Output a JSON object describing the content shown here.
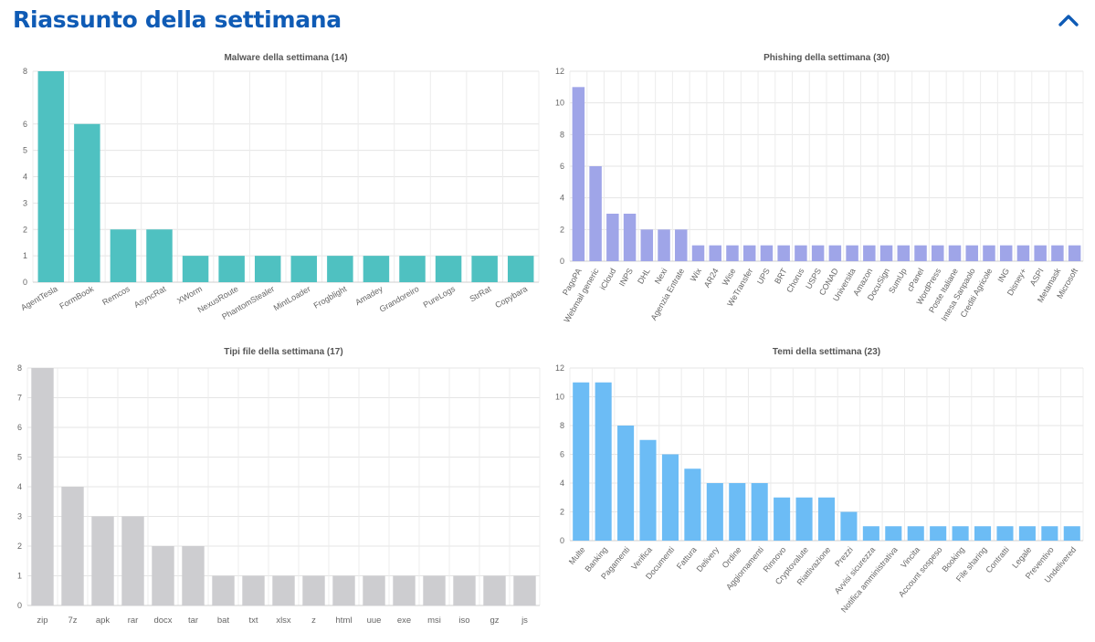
{
  "page": {
    "title": "Riassunto della settimana",
    "collapse_icon": "chevron-up-icon"
  },
  "chart_data": [
    {
      "type": "bar",
      "title": "Malware della settimana (14)",
      "color": "#4fc1c1",
      "ylim": [
        0,
        8
      ],
      "yticks": [
        0,
        1,
        2,
        3,
        4,
        5,
        6,
        8
      ],
      "categories": [
        "AgentTesla",
        "FormBook",
        "Remcos",
        "AsyncRat",
        "XWorm",
        "NexusRoute",
        "PhantomStealer",
        "MintLoader",
        "Frogblight",
        "Amadey",
        "Grandoreiro",
        "PureLogs",
        "StrRat",
        "Copybara"
      ],
      "values": [
        8,
        6,
        2,
        2,
        1,
        1,
        1,
        1,
        1,
        1,
        1,
        1,
        1,
        1
      ],
      "label_rotation": -30,
      "grid": true
    },
    {
      "type": "bar",
      "title": "Phishing della settimana (30)",
      "color": "#9fa5e8",
      "ylim": [
        0,
        12
      ],
      "yticks": [
        0,
        2,
        4,
        6,
        8,
        10,
        12
      ],
      "categories": [
        "PagoPA",
        "Webmail generic",
        "iCloud",
        "INPS",
        "DHL",
        "Nexi",
        "Agenzia Entrate",
        "Wix",
        "AR24",
        "Wise",
        "WeTransfer",
        "UPS",
        "BRT",
        "Chorus",
        "USPS",
        "CONAD",
        "Universita",
        "Amazon",
        "DocuSign",
        "SumUp",
        "cPanel",
        "WordPress",
        "Poste Italiane",
        "Intesa Sanpaolo",
        "Crediti Agricole",
        "ING",
        "Disney+",
        "ASPI",
        "Metamask",
        "Microsoft"
      ],
      "values": [
        11,
        6,
        3,
        3,
        2,
        2,
        2,
        1,
        1,
        1,
        1,
        1,
        1,
        1,
        1,
        1,
        1,
        1,
        1,
        1,
        1,
        1,
        1,
        1,
        1,
        1,
        1,
        1,
        1,
        1
      ],
      "label_rotation": -60,
      "grid": true
    },
    {
      "type": "bar",
      "title": "Tipi file della settimana (17)",
      "color": "#cdcdd0",
      "ylim": [
        0,
        8
      ],
      "yticks": [
        0,
        1,
        2,
        3,
        4,
        5,
        6,
        7,
        8
      ],
      "categories": [
        "zip",
        "7z",
        "apk",
        "rar",
        "docx",
        "tar",
        "bat",
        "txt",
        "xlsx",
        "z",
        "html",
        "uue",
        "exe",
        "msi",
        "iso",
        "gz",
        "js"
      ],
      "values": [
        8,
        4,
        3,
        3,
        2,
        2,
        1,
        1,
        1,
        1,
        1,
        1,
        1,
        1,
        1,
        1,
        1
      ],
      "label_rotation": 0,
      "grid": true
    },
    {
      "type": "bar",
      "title": "Temi della settimana (23)",
      "color": "#6cbcf5",
      "ylim": [
        0,
        12
      ],
      "yticks": [
        0,
        2,
        4,
        6,
        8,
        10,
        12
      ],
      "categories": [
        "Multe",
        "Banking",
        "Pagamenti",
        "Verifica",
        "Documenti",
        "Fattura",
        "Delivery",
        "Ordine",
        "Aggiornamenti",
        "Rinnovo",
        "Cryptovalute",
        "Riattivazione",
        "Prezzi",
        "Avvisi sicurezza",
        "Notifica amministrativa",
        "Vincita",
        "Account sospeso",
        "Booking",
        "File sharing",
        "Contratti",
        "Legale",
        "Preventivo",
        "Undelivered"
      ],
      "values": [
        11,
        11,
        8,
        7,
        6,
        5,
        4,
        4,
        4,
        3,
        3,
        3,
        2,
        1,
        1,
        1,
        1,
        1,
        1,
        1,
        1,
        1,
        1
      ],
      "label_rotation": -50,
      "grid": true
    }
  ]
}
